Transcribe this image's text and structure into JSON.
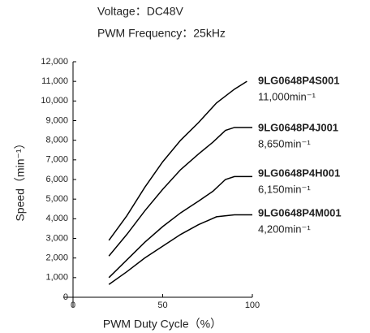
{
  "chart_data": {
    "type": "line",
    "subtitle_lines": [
      "Voltage：DC48V",
      "PWM Frequency：25kHz"
    ],
    "x_label": "PWM Duty Cycle（%）",
    "y_label": "Speed（min⁻¹）",
    "xlim": [
      0,
      100
    ],
    "xticks": [
      0,
      50,
      100
    ],
    "ylim": [
      0,
      12000
    ],
    "yticks": [
      0,
      {
        "value": 1000,
        "label": "1,000"
      },
      {
        "value": 2000,
        "label": "2,000"
      },
      {
        "value": 3000,
        "label": "3,000"
      },
      {
        "value": 4000,
        "label": "4,000"
      },
      {
        "value": 5000,
        "label": "5,000"
      },
      {
        "value": 6000,
        "label": "6,000"
      },
      {
        "value": 7000,
        "label": "7,000"
      },
      {
        "value": 8000,
        "label": "8,000"
      },
      {
        "value": 9000,
        "label": "9,000"
      },
      {
        "value": 10000,
        "label": "10,000"
      },
      {
        "value": 11000,
        "label": "11,000"
      },
      {
        "value": 12000,
        "label": "12,000"
      }
    ],
    "series": [
      {
        "name": "9LG0648P4S001",
        "annotation": "11,000min⁻¹",
        "color": "#000000",
        "x": [
          20,
          30,
          40,
          50,
          60,
          70,
          80,
          90,
          97
        ],
        "values": [
          2900,
          4150,
          5600,
          6900,
          8000,
          8900,
          9900,
          10600,
          11000
        ]
      },
      {
        "name": "9LG0648P4J001",
        "annotation": "8,650min⁻¹",
        "color": "#000000",
        "x": [
          20,
          30,
          40,
          50,
          60,
          70,
          78,
          85,
          90,
          100
        ],
        "values": [
          2100,
          3200,
          4400,
          5500,
          6500,
          7300,
          7900,
          8500,
          8650,
          8650
        ]
      },
      {
        "name": "9LG0648P4H001",
        "annotation": "6,150min⁻¹",
        "color": "#000000",
        "x": [
          20,
          30,
          40,
          50,
          60,
          70,
          78,
          85,
          90,
          100
        ],
        "values": [
          1000,
          1900,
          2800,
          3600,
          4300,
          4900,
          5400,
          6000,
          6150,
          6150
        ]
      },
      {
        "name": "9LG0648P4M001",
        "annotation": "4,200min⁻¹",
        "color": "#000000",
        "x": [
          20,
          30,
          40,
          50,
          60,
          70,
          80,
          90,
          100
        ],
        "values": [
          650,
          1300,
          2000,
          2600,
          3200,
          3700,
          4100,
          4200,
          4200
        ]
      }
    ]
  }
}
